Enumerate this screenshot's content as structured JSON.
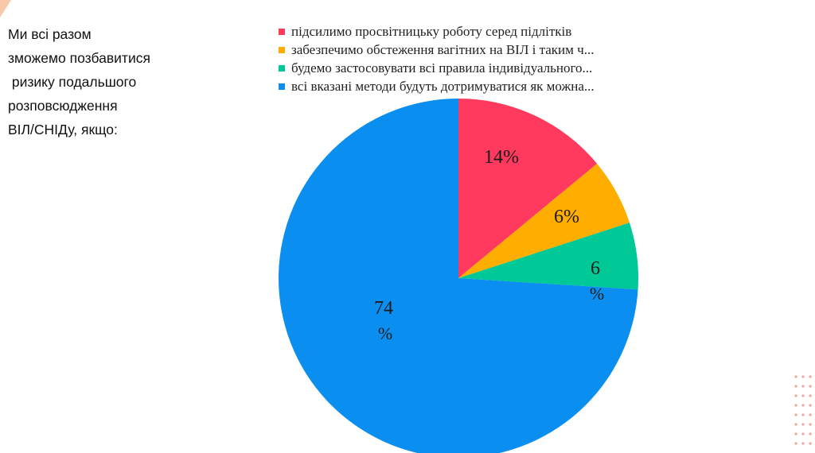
{
  "question": {
    "lines": [
      "Ми всі разом",
      "зможемо позбавитися",
      " ризику подальшого",
      "розповсюдження",
      "ВІЛ/СНІДу, якщо:"
    ]
  },
  "colors": {
    "corner_accent": "#f7c9a8",
    "dots": "#f2a39a"
  },
  "chart_data": {
    "type": "pie",
    "categories": [
      "підсилимо просвітницьку роботу серед підлітків",
      "забезпечимо обстеження вагітних на ВІЛ і таким ч...",
      "будемо застосовувати всі правила індивідуального...",
      "всі вказані методи будуть дотримуватися як можна..."
    ],
    "values": [
      14,
      6,
      6,
      74
    ],
    "labels": [
      "14%",
      "6%",
      "6%",
      "74%"
    ],
    "colors": [
      "#ff3a5e",
      "#ffae00",
      "#00c896",
      "#0a8ff0"
    ],
    "legend": "top",
    "title": ""
  }
}
